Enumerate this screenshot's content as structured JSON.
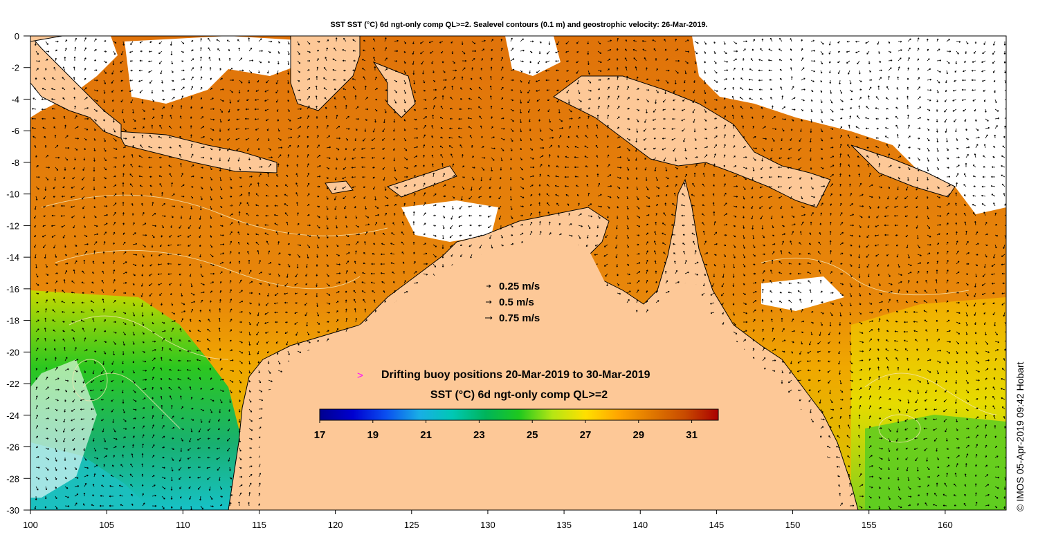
{
  "title": "SST SST (°C) 6d ngt-only comp QL>=2. Sealevel contours (0.1 m) and geostrophic velocity: 26-Mar-2019.",
  "credit": "© IMOS 05-Apr-2019 09:42 Hobart",
  "map": {
    "lon_range": [
      100,
      164
    ],
    "lat_range": [
      -30,
      0
    ],
    "lon_ticks": [
      "100",
      "105",
      "110",
      "115",
      "120",
      "125",
      "130",
      "135",
      "140",
      "145",
      "150",
      "155",
      "160"
    ],
    "lat_ticks": [
      "0",
      "-2",
      "-4",
      "-6",
      "-8",
      "-10",
      "-12",
      "-14",
      "-16",
      "-18",
      "-20",
      "-22",
      "-24",
      "-26",
      "-28",
      "-30"
    ],
    "colors": {
      "land": "#fdc897",
      "cloud": "#ffffff",
      "coast": "#000000",
      "contour": "#f4e4b4",
      "arrow": "#000000"
    }
  },
  "velocity_legend": [
    {
      "label": "0.25 m/s",
      "speed": 0.25
    },
    {
      "label": "0.5 m/s",
      "speed": 0.5
    },
    {
      "label": "0.75 m/s",
      "speed": 0.75
    }
  ],
  "buoy_legend": {
    "label": "Drifting buoy positions 20-Mar-2019 to 30-Mar-2019",
    "marker_color": "#ff00ff"
  },
  "colorbar": {
    "title": "SST (°C) 6d ngt-only comp QL>=2",
    "min": 17,
    "max": 32,
    "ticks": [
      "17",
      "19",
      "21",
      "23",
      "25",
      "27",
      "29",
      "31"
    ],
    "colormap": [
      "#00008f",
      "#0000d0",
      "#0a4ff0",
      "#19aee6",
      "#00c8b4",
      "#00b45a",
      "#1ec81e",
      "#b4e614",
      "#ffe000",
      "#ffa500",
      "#e07800",
      "#c84a00",
      "#aa0000"
    ]
  }
}
